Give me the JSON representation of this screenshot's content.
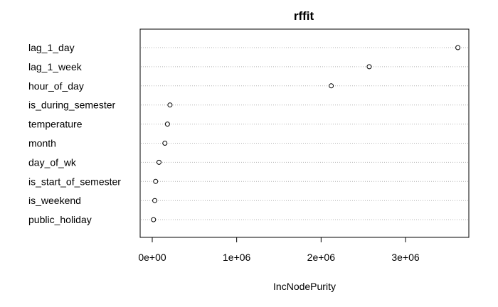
{
  "chart_data": {
    "type": "scatter",
    "subtype": "dotchart",
    "title": "rffit",
    "xlabel": "IncNodePurity",
    "ylabel": "",
    "xlim": [
      0,
      3650000
    ],
    "grid": true,
    "x_ticks": [
      {
        "value": 0,
        "label": "0e+00"
      },
      {
        "value": 1000000,
        "label": "1e+06"
      },
      {
        "value": 2000000,
        "label": "2e+06"
      },
      {
        "value": 3000000,
        "label": "3e+06"
      }
    ],
    "categories": [
      "lag_1_day",
      "lag_1_week",
      "hour_of_day",
      "is_during_semester",
      "temperature",
      "month",
      "day_of_wk",
      "is_start_of_semester",
      "is_weekend",
      "public_holiday"
    ],
    "values": [
      3620000,
      2570000,
      2120000,
      210000,
      180000,
      150000,
      80000,
      40000,
      30000,
      15000
    ]
  }
}
